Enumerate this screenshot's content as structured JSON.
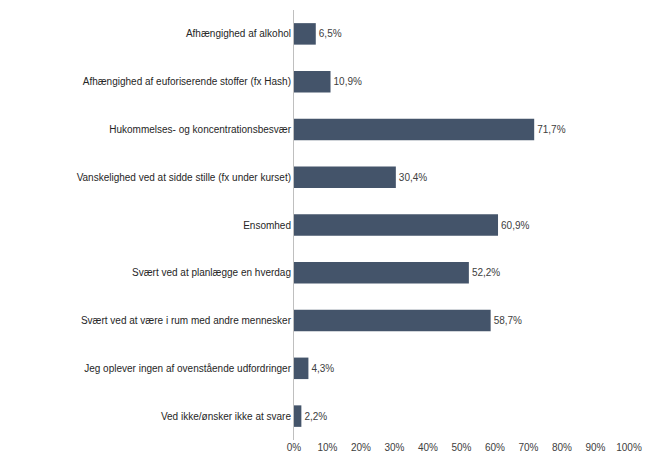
{
  "chart_data": {
    "type": "bar",
    "orientation": "horizontal",
    "categories": [
      "Afhængighed af alkohol",
      "Afhængighed af euforiserende stoffer (fx Hash)",
      "Hukommelses- og koncentrationsbesvær",
      "Vanskelighed ved at sidde stille (fx under kurset)",
      "Ensomhed",
      "Svært ved at planlægge en hverdag",
      "Svært ved at være i rum med andre mennesker",
      "Jeg oplever ingen af ovenstående udfordringer",
      "Ved ikke/ønsker ikke at svare"
    ],
    "values": [
      6.5,
      10.9,
      71.7,
      30.4,
      60.9,
      52.2,
      58.7,
      4.3,
      2.2
    ],
    "value_labels": [
      "6,5%",
      "10,9%",
      "71,7%",
      "30,4%",
      "60,9%",
      "52,2%",
      "58,7%",
      "4,3%",
      "2,2%"
    ],
    "color": "#44546a",
    "xlim": [
      0,
      100
    ],
    "xticks": [
      {
        "value": 0,
        "label": "0%"
      },
      {
        "value": 10,
        "label": "10%"
      },
      {
        "value": 20,
        "label": "20%"
      },
      {
        "value": 30,
        "label": "30%"
      },
      {
        "value": 40,
        "label": "40%"
      },
      {
        "value": 50,
        "label": "50%"
      },
      {
        "value": 60,
        "label": "60%"
      },
      {
        "value": 70,
        "label": "70%"
      },
      {
        "value": 80,
        "label": "80%"
      },
      {
        "value": 90,
        "label": "90%"
      },
      {
        "value": 100,
        "label": "100%"
      }
    ],
    "data_labels": true,
    "grid": false
  }
}
